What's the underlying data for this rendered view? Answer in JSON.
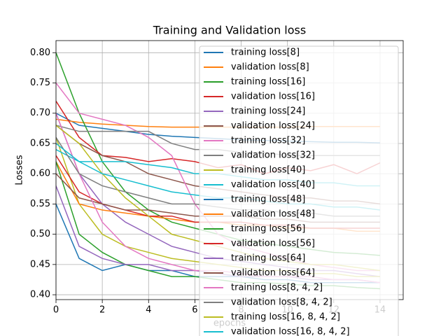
{
  "chart_data": {
    "type": "line",
    "title": "Training and Validation loss",
    "xlabel": "epochs",
    "ylabel": "Losses",
    "x": [
      0,
      1,
      2,
      3,
      4,
      5,
      6,
      7,
      8,
      9,
      10,
      11,
      12,
      13,
      14
    ],
    "xlim": [
      0,
      15
    ],
    "xticks": [
      0,
      2,
      4,
      6,
      8,
      10,
      12,
      14
    ],
    "ylim": [
      0.392,
      0.82
    ],
    "yticks": [
      {
        "value": 0.4,
        "label": "0.40"
      },
      {
        "value": 0.45,
        "label": "0.45"
      },
      {
        "value": 0.5,
        "label": "0.50"
      },
      {
        "value": 0.55,
        "label": "0.55"
      },
      {
        "value": 0.6,
        "label": "0.60"
      },
      {
        "value": 0.65,
        "label": "0.65"
      },
      {
        "value": 0.7,
        "label": "0.70"
      },
      {
        "value": 0.75,
        "label": "0.75"
      },
      {
        "value": 0.8,
        "label": "0.80"
      }
    ],
    "grid": true,
    "legend": "upper right",
    "series": [
      {
        "name": "training loss[8]",
        "color": "#1f77b4",
        "values": [
          0.7,
          0.68,
          0.675,
          0.67,
          0.665,
          0.662,
          0.66,
          0.658,
          0.656,
          0.655,
          0.654,
          0.653,
          0.652,
          0.652,
          0.651
        ]
      },
      {
        "name": "validation loss[8]",
        "color": "#ff7f0e",
        "values": [
          0.69,
          0.685,
          0.682,
          0.68,
          0.678,
          0.677,
          0.677,
          0.677,
          0.677,
          0.677,
          0.677,
          0.678,
          0.678,
          0.678,
          0.678
        ]
      },
      {
        "name": "training loss[16]",
        "color": "#2ca02c",
        "values": [
          0.8,
          0.7,
          0.62,
          0.57,
          0.54,
          0.52,
          0.51,
          0.5,
          0.49,
          0.485,
          0.48,
          0.475,
          0.47,
          0.468,
          0.465
        ]
      },
      {
        "name": "validation loss[16]",
        "color": "#d62728",
        "values": [
          0.72,
          0.66,
          0.63,
          0.627,
          0.62,
          0.625,
          0.62,
          0.61,
          0.615,
          0.6,
          0.61,
          0.605,
          0.615,
          0.6,
          0.618
        ]
      },
      {
        "name": "training loss[24]",
        "color": "#9467bd",
        "values": [
          0.7,
          0.6,
          0.55,
          0.52,
          0.5,
          0.48,
          0.47,
          0.46,
          0.455,
          0.45,
          0.445,
          0.44,
          0.44,
          0.435,
          0.43
        ]
      },
      {
        "name": "validation loss[24]",
        "color": "#8c564b",
        "values": [
          0.68,
          0.65,
          0.63,
          0.62,
          0.6,
          0.59,
          0.58,
          0.575,
          0.57,
          0.565,
          0.56,
          0.56,
          0.555,
          0.555,
          0.55
        ]
      },
      {
        "name": "training loss[32]",
        "color": "#e377c2",
        "values": [
          0.75,
          0.7,
          0.69,
          0.68,
          0.66,
          0.63,
          0.55,
          0.5,
          0.48,
          0.47,
          0.46,
          0.45,
          0.445,
          0.44,
          0.44
        ]
      },
      {
        "name": "validation loss[32]",
        "color": "#7f7f7f",
        "values": [
          0.68,
          0.67,
          0.67,
          0.67,
          0.67,
          0.65,
          0.64,
          0.64,
          0.635,
          0.635,
          0.63,
          0.63,
          0.63,
          0.63,
          0.63
        ]
      },
      {
        "name": "training loss[40]",
        "color": "#bcbd22",
        "values": [
          0.66,
          0.55,
          0.5,
          0.48,
          0.47,
          0.46,
          0.455,
          0.45,
          0.445,
          0.44,
          0.44,
          0.435,
          0.435,
          0.43,
          0.43
        ]
      },
      {
        "name": "validation loss[40]",
        "color": "#17becf",
        "values": [
          0.64,
          0.62,
          0.62,
          0.62,
          0.615,
          0.61,
          0.6,
          0.6,
          0.595,
          0.59,
          0.59,
          0.585,
          0.585,
          0.58,
          0.58
        ]
      },
      {
        "name": "training loss[48]",
        "color": "#1f77b4",
        "values": [
          0.55,
          0.46,
          0.44,
          0.45,
          0.44,
          0.44,
          0.43,
          0.43,
          0.43,
          0.425,
          0.425,
          0.42,
          0.42,
          0.42,
          0.42
        ]
      },
      {
        "name": "validation loss[48]",
        "color": "#ff7f0e",
        "values": [
          0.62,
          0.55,
          0.54,
          0.535,
          0.53,
          0.525,
          0.52,
          0.52,
          0.515,
          0.515,
          0.51,
          0.51,
          0.51,
          0.505,
          0.505
        ]
      },
      {
        "name": "training loss[56]",
        "color": "#2ca02c",
        "values": [
          0.62,
          0.5,
          0.47,
          0.45,
          0.44,
          0.43,
          0.43,
          0.425,
          0.42,
          0.42,
          0.418,
          0.415,
          0.415,
          0.412,
          0.41
        ]
      },
      {
        "name": "validation loss[56]",
        "color": "#d62728",
        "values": [
          0.63,
          0.57,
          0.55,
          0.54,
          0.53,
          0.53,
          0.52,
          0.52,
          0.52,
          0.515,
          0.515,
          0.51,
          0.51,
          0.51,
          0.51
        ]
      },
      {
        "name": "training loss[64]",
        "color": "#9467bd",
        "values": [
          0.58,
          0.48,
          0.46,
          0.45,
          0.45,
          0.44,
          0.44,
          0.435,
          0.43,
          0.43,
          0.43,
          0.425,
          0.425,
          0.425,
          0.42
        ]
      },
      {
        "name": "validation loss[64]",
        "color": "#8c564b",
        "values": [
          0.6,
          0.56,
          0.55,
          0.54,
          0.54,
          0.535,
          0.53,
          0.53,
          0.53,
          0.525,
          0.525,
          0.52,
          0.52,
          0.52,
          0.52
        ]
      },
      {
        "name": "training loss[8, 4, 2]",
        "color": "#e377c2",
        "values": [
          0.7,
          0.6,
          0.52,
          0.48,
          0.46,
          0.45,
          0.44,
          0.44,
          0.435,
          0.43,
          0.43,
          0.43,
          0.425,
          0.425,
          0.42
        ]
      },
      {
        "name": "validation loss[8, 4, 2]",
        "color": "#7f7f7f",
        "values": [
          0.66,
          0.6,
          0.58,
          0.57,
          0.56,
          0.55,
          0.55,
          0.545,
          0.54,
          0.54,
          0.535,
          0.535,
          0.53,
          0.53,
          0.53
        ]
      },
      {
        "name": "training loss[16, 8, 4, 2]",
        "color": "#bcbd22",
        "values": [
          0.68,
          0.65,
          0.6,
          0.56,
          0.53,
          0.5,
          0.49,
          0.48,
          0.47,
          0.46,
          0.455,
          0.45,
          0.45,
          0.445,
          0.44
        ]
      },
      {
        "name": "validation loss[16, 8, 4, 2]",
        "color": "#17becf",
        "values": [
          0.65,
          0.62,
          0.6,
          0.59,
          0.58,
          0.57,
          0.565,
          0.56,
          0.56,
          0.555,
          0.55,
          0.55,
          0.545,
          0.545,
          0.54
        ]
      }
    ]
  }
}
